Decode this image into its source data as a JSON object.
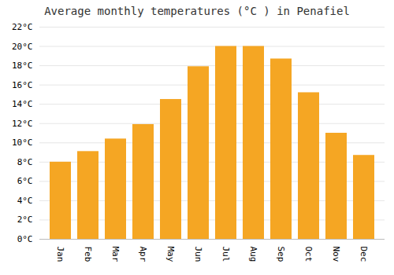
{
  "chart_data": {
    "type": "bar",
    "title": "Average monthly temperatures (°C ) in Penafiel",
    "categories": [
      "Jan",
      "Feb",
      "Mar",
      "Apr",
      "May",
      "Jun",
      "Jul",
      "Aug",
      "Sep",
      "Oct",
      "Nov",
      "Dec"
    ],
    "values": [
      8.0,
      9.1,
      10.4,
      11.9,
      14.5,
      17.9,
      20.0,
      20.0,
      18.7,
      15.2,
      11.0,
      8.7
    ],
    "color": "#F5A623",
    "ylim": [
      0,
      22
    ],
    "yticks": [
      {
        "value": 0,
        "label": "0°C"
      },
      {
        "value": 2,
        "label": "2°C"
      },
      {
        "value": 4,
        "label": "4°C"
      },
      {
        "value": 6,
        "label": "6°C"
      },
      {
        "value": 8,
        "label": "8°C"
      },
      {
        "value": 10,
        "label": "10°C"
      },
      {
        "value": 12,
        "label": "12°C"
      },
      {
        "value": 14,
        "label": "14°C"
      },
      {
        "value": 16,
        "label": "16°C"
      },
      {
        "value": 18,
        "label": "18°C"
      },
      {
        "value": 20,
        "label": "20°C"
      },
      {
        "value": 22,
        "label": "22°C"
      }
    ],
    "grid": true
  }
}
